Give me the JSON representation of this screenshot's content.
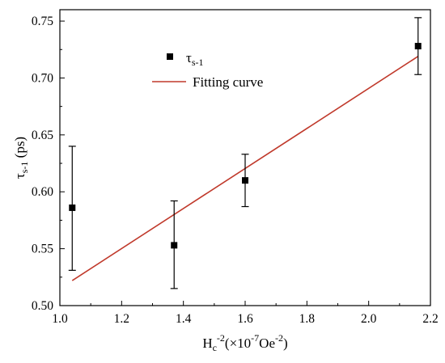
{
  "chart_data": {
    "type": "scatter",
    "title": "",
    "xlabel": {
      "base": "H",
      "sub": "c",
      "sup": "-2",
      "rest": "(×10",
      "rest_sup": "-7",
      "unit": "Oe",
      "unit_sup": "-2",
      "close": ")"
    },
    "ylabel": {
      "symbol": "τ",
      "sub": "s-1",
      "unit": " (ps)"
    },
    "xlim": [
      1.0,
      2.2
    ],
    "ylim": [
      0.5,
      0.76
    ],
    "x_ticks": [
      "1.0",
      "1.2",
      "1.4",
      "1.6",
      "1.8",
      "2.0",
      "2.2"
    ],
    "y_ticks": [
      "0.50",
      "0.55",
      "0.60",
      "0.65",
      "0.70",
      "0.75"
    ],
    "series": [
      {
        "name": "τ",
        "name_sub": "s-1",
        "kind": "points-with-error",
        "color": "#000000",
        "points": [
          {
            "x": 1.04,
            "y": 0.586,
            "err_low": 0.531,
            "err_high": 0.64
          },
          {
            "x": 1.37,
            "y": 0.553,
            "err_low": 0.515,
            "err_high": 0.592
          },
          {
            "x": 1.6,
            "y": 0.61,
            "err_low": 0.587,
            "err_high": 0.633
          },
          {
            "x": 2.16,
            "y": 0.728,
            "err_low": 0.703,
            "err_high": 0.753
          }
        ]
      },
      {
        "name": "Fitting curve",
        "kind": "line",
        "color": "#c0392b",
        "points": [
          {
            "x": 1.04,
            "y": 0.522
          },
          {
            "x": 2.16,
            "y": 0.719
          }
        ]
      }
    ],
    "legend_position": "top-left"
  }
}
